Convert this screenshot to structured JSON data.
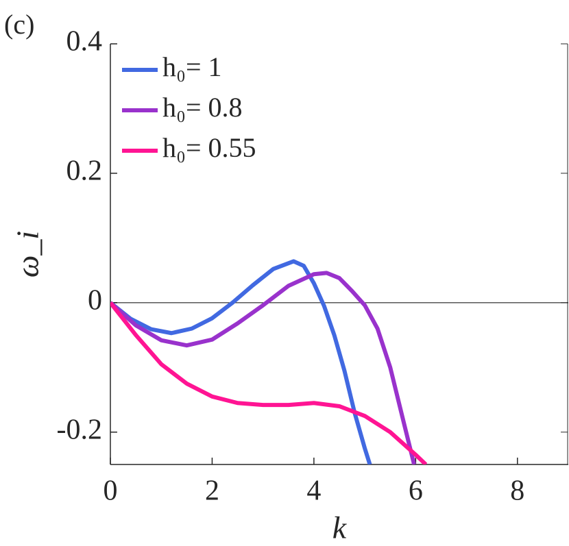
{
  "chart_data": {
    "type": "line",
    "panel_label": "(c)",
    "xlabel": "k",
    "ylabel": "ω_i",
    "xlim": [
      0,
      9
    ],
    "ylim": [
      -0.25,
      0.4
    ],
    "xticks": [
      0,
      2,
      4,
      6,
      8
    ],
    "yticks": [
      -0.2,
      0,
      0.2,
      0.4
    ],
    "hline": 0,
    "legend": "upper left",
    "series": [
      {
        "name": "h₀= 1",
        "color": "#4169e1",
        "x": [
          0,
          0.4,
          0.8,
          1.2,
          1.6,
          2.0,
          2.4,
          2.8,
          3.2,
          3.6,
          3.8,
          4.0,
          4.2,
          4.4,
          4.6,
          4.8,
          5.0,
          5.1
        ],
        "values": [
          0,
          -0.025,
          -0.041,
          -0.047,
          -0.04,
          -0.024,
          0,
          0.027,
          0.052,
          0.064,
          0.057,
          0.03,
          -0.005,
          -0.05,
          -0.105,
          -0.17,
          -0.225,
          -0.25
        ]
      },
      {
        "name": "h₀= 0.8",
        "color": "#9932cc",
        "x": [
          0,
          0.5,
          1.0,
          1.5,
          2.0,
          2.5,
          3.0,
          3.5,
          4.0,
          4.25,
          4.5,
          4.75,
          5.0,
          5.25,
          5.5,
          5.75,
          5.97
        ],
        "values": [
          0,
          -0.035,
          -0.058,
          -0.066,
          -0.057,
          -0.032,
          -0.004,
          0.026,
          0.044,
          0.046,
          0.038,
          0.018,
          -0.004,
          -0.04,
          -0.1,
          -0.18,
          -0.25
        ]
      },
      {
        "name": "h₀= 0.55",
        "color": "#ff1493",
        "x": [
          0,
          0.5,
          1.0,
          1.5,
          2.0,
          2.5,
          3.0,
          3.5,
          4.0,
          4.5,
          5.0,
          5.5,
          6.0,
          6.2
        ],
        "values": [
          0,
          -0.05,
          -0.095,
          -0.125,
          -0.145,
          -0.155,
          -0.158,
          -0.158,
          -0.155,
          -0.16,
          -0.175,
          -0.2,
          -0.235,
          -0.25
        ]
      }
    ]
  }
}
